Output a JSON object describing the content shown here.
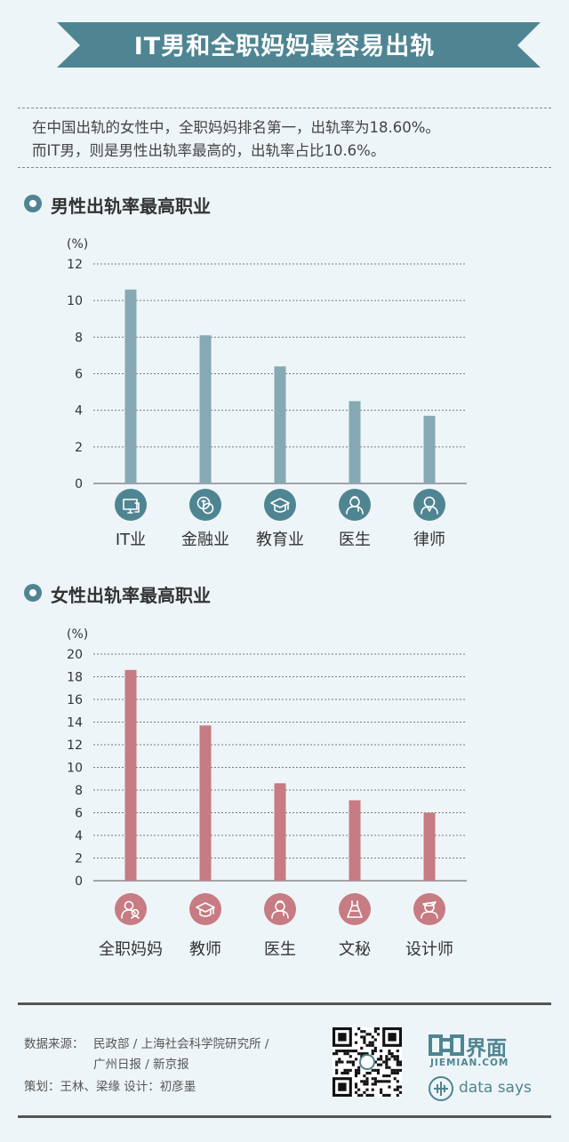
{
  "title": "IT男和全职妈妈最容易出轨",
  "intro": {
    "line1": "在中国出轨的女性中，全职妈妈排名第一，出轨率为18.60%。",
    "line2": "而IT男，则是男性出轨率最高的，出轨率占比10.6%。"
  },
  "colors": {
    "banner": "#4f8592",
    "male_bar": "#86a9b3",
    "female_bar": "#c77b82",
    "male_icon": "#4f8592",
    "female_icon": "#c77b82",
    "bullet": "#4f8592"
  },
  "male_section": {
    "heading": "男性出轨率最高职业"
  },
  "female_section": {
    "heading": "女性出轨率最高职业"
  },
  "chart_data": [
    {
      "type": "bar",
      "title": "男性出轨率最高职业",
      "unit_label": "(%)",
      "categories": [
        "IT业",
        "金融业",
        "教育业",
        "医生",
        "律师"
      ],
      "icons": [
        "computer-icon",
        "coins-icon",
        "graduation-cap-icon",
        "doctor-icon",
        "lawyer-icon"
      ],
      "values": [
        10.6,
        8.1,
        6.4,
        4.5,
        3.7
      ],
      "ylim": [
        0,
        12
      ],
      "yticks": [
        0,
        2,
        4,
        6,
        8,
        10,
        12
      ],
      "grid": true
    },
    {
      "type": "bar",
      "title": "女性出轨率最高职业",
      "unit_label": "(%)",
      "categories": [
        "全职妈妈",
        "教师",
        "医生",
        "文秘",
        "设计师"
      ],
      "icons": [
        "mother-icon",
        "graduation-cap-icon",
        "doctor-icon",
        "dress-icon",
        "designer-icon"
      ],
      "values": [
        18.6,
        13.7,
        8.6,
        7.1,
        6.0
      ],
      "ylim": [
        0,
        20
      ],
      "yticks": [
        0,
        2,
        4,
        6,
        8,
        10,
        12,
        14,
        16,
        18,
        20
      ],
      "grid": true
    }
  ],
  "footer": {
    "source_label": "数据来源：",
    "source_line1": "民政部 / 上海社会科学院研究所 /",
    "source_line2": "广州日报 / 新京报",
    "credits": "策划：王林、梁缘   设计：初彦墨",
    "logo_name": "界面",
    "logo_domain": "JIEMIAN.COM",
    "data_says": "data says"
  }
}
